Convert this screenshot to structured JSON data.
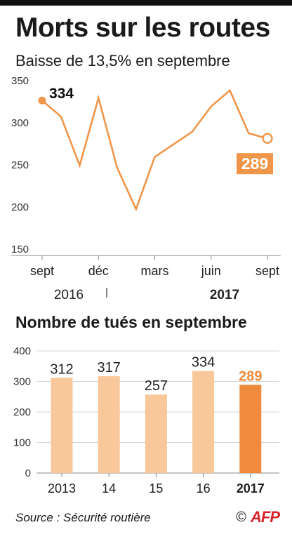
{
  "header": {
    "title": "Morts sur les routes",
    "subtitle": "Baisse de 13,5% en septembre"
  },
  "chart_data": [
    {
      "type": "line",
      "title": "Baisse de 13,5% en septembre",
      "x": [
        "2016-09",
        "2016-10",
        "2016-11",
        "2016-12",
        "2017-01",
        "2017-02",
        "2017-03",
        "2017-04",
        "2017-05",
        "2017-06",
        "2017-07",
        "2017-08",
        "2017-09"
      ],
      "values": [
        334,
        315,
        257,
        337,
        254,
        205,
        267,
        282,
        297,
        327,
        346,
        295,
        289
      ],
      "ylim": [
        150,
        350
      ],
      "yticks": [
        150,
        200,
        250,
        300,
        350
      ],
      "xtick_labels": [
        "sept",
        "déc",
        "mars",
        "juin",
        "sept"
      ],
      "year_labels": [
        "2016",
        "2017"
      ],
      "annotations": [
        {
          "x": "2016-09",
          "label": "334"
        },
        {
          "x": "2017-09",
          "label": "289"
        }
      ],
      "grid": false
    },
    {
      "type": "bar",
      "title": "Nombre de tués en septembre",
      "categories": [
        "2013",
        "14",
        "15",
        "16",
        "2017"
      ],
      "values": [
        312,
        317,
        257,
        334,
        289
      ],
      "ylim": [
        0,
        400
      ],
      "yticks": [
        0,
        100,
        200,
        300,
        400
      ],
      "grid": true
    }
  ],
  "footer": {
    "source": "Source : Sécurité routière",
    "copyright": "©",
    "logo_text": "AFP"
  },
  "colors": {
    "accent": "#f0964a",
    "accent_light": "#f8c79a",
    "accent_dark": "#f08a3c",
    "axis": "#888888",
    "grid": "#d6d6d6"
  }
}
